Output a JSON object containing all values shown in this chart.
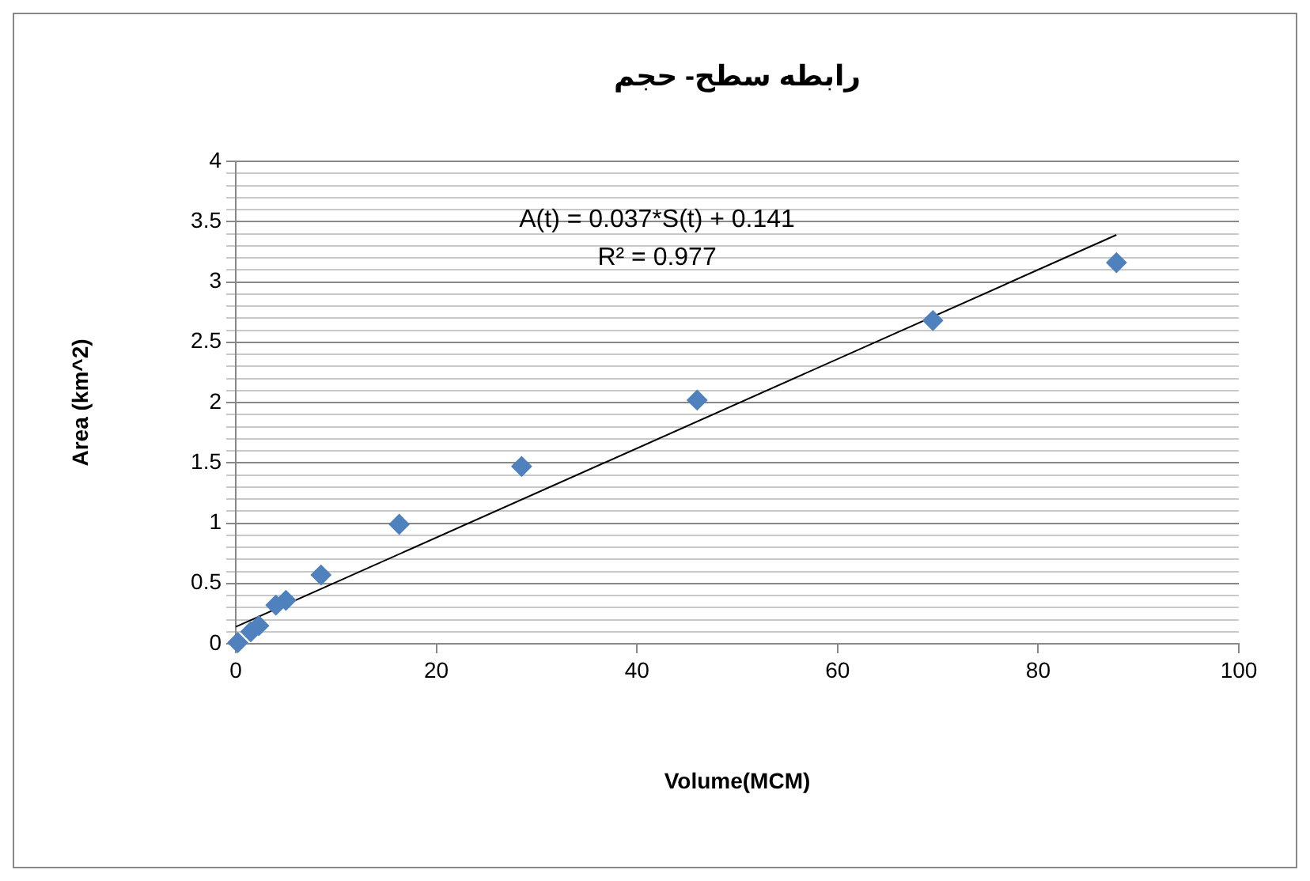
{
  "chart_data": {
    "type": "scatter",
    "title": "رابطه سطح- حجم",
    "xlabel": "Volume(MCM)",
    "ylabel": "Area (km^2)",
    "annotations": [
      "A(t) = 0.037*S(t) + 0.141",
      "R² = 0.977"
    ],
    "xlim": [
      0,
      100
    ],
    "xticks": [
      0,
      20,
      40,
      60,
      80,
      100
    ],
    "ylim": [
      0,
      4
    ],
    "yticks": [
      0,
      {
        "value": 0.1,
        "label": null
      },
      {
        "value": 0.2,
        "label": null
      },
      {
        "value": 0.3,
        "label": null
      },
      {
        "value": 0.4,
        "label": null
      },
      0.5,
      {
        "value": 0.6,
        "label": null
      },
      {
        "value": 0.7,
        "label": null
      },
      {
        "value": 0.8,
        "label": null
      },
      {
        "value": 0.9,
        "label": null
      },
      1,
      {
        "value": 1.1,
        "label": null
      },
      {
        "value": 1.2,
        "label": null
      },
      {
        "value": 1.3,
        "label": null
      },
      {
        "value": 1.4,
        "label": null
      },
      1.5,
      {
        "value": 1.6,
        "label": null
      },
      {
        "value": 1.7,
        "label": null
      },
      {
        "value": 1.8,
        "label": null
      },
      {
        "value": 1.9,
        "label": null
      },
      2,
      {
        "value": 2.1,
        "label": null
      },
      {
        "value": 2.2,
        "label": null
      },
      {
        "value": 2.3,
        "label": null
      },
      {
        "value": 2.4,
        "label": null
      },
      2.5,
      {
        "value": 2.6,
        "label": null
      },
      {
        "value": 2.7,
        "label": null
      },
      {
        "value": 2.8,
        "label": null
      },
      {
        "value": 2.9,
        "label": null
      },
      3,
      {
        "value": 3.1,
        "label": null
      },
      {
        "value": 3.2,
        "label": null
      },
      {
        "value": 3.3,
        "label": null
      },
      {
        "value": 3.4,
        "label": null
      },
      3.5,
      {
        "value": 3.6,
        "label": null
      },
      {
        "value": 3.7,
        "label": null
      },
      {
        "value": 3.8,
        "label": null
      },
      {
        "value": 3.9,
        "label": null
      },
      4
    ],
    "grid": "y",
    "legend": false,
    "marker": "diamond",
    "series": [
      {
        "type": "scatter",
        "color": "#4f81bd",
        "x": [
          0.2,
          1.5,
          2.3,
          4,
          5,
          8.5,
          16.3,
          28.5,
          46,
          69.5,
          87.8
        ],
        "values": [
          0.01,
          0.1,
          0.15,
          0.32,
          0.36,
          0.57,
          0.99,
          1.47,
          2.02,
          2.68,
          3.16
        ]
      },
      {
        "type": "line",
        "color": "#000000",
        "marker": "none",
        "x": [
          0,
          87.8
        ],
        "values": [
          0.14,
          3.39
        ]
      }
    ]
  }
}
